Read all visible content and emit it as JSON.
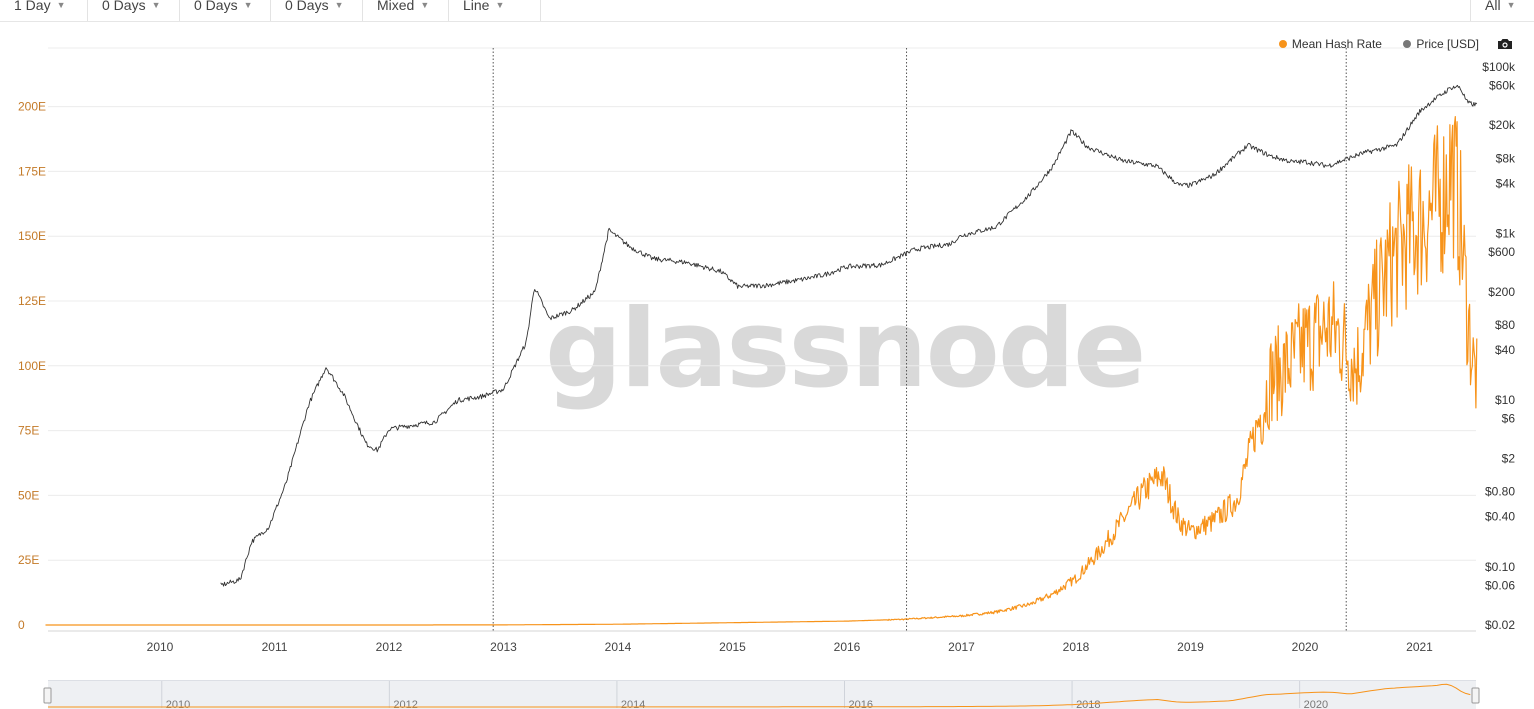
{
  "toolbar": {
    "resolution": "1 Day",
    "ma1": "0 Days",
    "ma2": "0 Days",
    "ma3": "0 Days",
    "scale": "Mixed",
    "chart_style": "Line",
    "range": "All"
  },
  "legend": {
    "hash_rate": "Mean Hash Rate",
    "price": "Price [USD]"
  },
  "watermark": "glassnode",
  "navigator_years": [
    "2010",
    "2012",
    "2014",
    "2016",
    "2018",
    "2020"
  ],
  "colors": {
    "hash_rate": "#f7931a",
    "price": "#333333",
    "left_axis_labels": "#c47a28",
    "grid": "#ececec"
  },
  "icons": {
    "camera": "camera-icon",
    "dropdown": "chevron-down-icon"
  },
  "chart_data": {
    "type": "line",
    "x_ticks": [
      "2010",
      "2011",
      "2012",
      "2013",
      "2014",
      "2015",
      "2016",
      "2017",
      "2018",
      "2019",
      "2020",
      "2021"
    ],
    "left_axis": {
      "ticks": [
        "0",
        "25E",
        "50E",
        "75E",
        "100E",
        "125E",
        "150E",
        "175E",
        "200E"
      ],
      "values": [
        0,
        25,
        50,
        75,
        100,
        125,
        150,
        175,
        200
      ],
      "unit": "EH/s",
      "ylim": [
        0,
        225
      ]
    },
    "right_axis": {
      "scale": "log",
      "ticks": [
        "$100k",
        "$60k",
        "$20k",
        "$8k",
        "$4k",
        "$1k",
        "$600",
        "$200",
        "$80",
        "$40",
        "$10",
        "$6",
        "$2",
        "$0.80",
        "$0.40",
        "$0.10",
        "$0.06",
        "$0.02"
      ],
      "values": [
        100000,
        60000,
        20000,
        8000,
        4000,
        1000,
        600,
        200,
        80,
        40,
        10,
        6,
        2,
        0.8,
        0.4,
        0.1,
        0.06,
        0.02
      ],
      "ylim": [
        0.02,
        100000
      ]
    },
    "halving_dates": [
      2012.91,
      2016.52,
      2020.36
    ],
    "series": [
      {
        "name": "Mean Hash Rate",
        "axis": "left",
        "x": [
          2009.0,
          2010.0,
          2011.0,
          2012.0,
          2013.0,
          2014.0,
          2014.5,
          2015.0,
          2015.5,
          2016.0,
          2016.5,
          2017.0,
          2017.3,
          2017.6,
          2017.8,
          2018.0,
          2018.2,
          2018.4,
          2018.6,
          2018.75,
          2018.9,
          2019.0,
          2019.2,
          2019.4,
          2019.55,
          2019.7,
          2019.85,
          2020.0,
          2020.2,
          2020.3,
          2020.45,
          2020.6,
          2020.75,
          2020.9,
          2021.0,
          2021.1,
          2021.2,
          2021.28,
          2021.35,
          2021.42,
          2021.47,
          2021.5
        ],
        "y": [
          0,
          0,
          0,
          0,
          0.05,
          0.3,
          0.6,
          0.9,
          1.2,
          1.5,
          2.2,
          3.5,
          5,
          8,
          12,
          18,
          28,
          40,
          52,
          58,
          40,
          36,
          40,
          48,
          72,
          95,
          100,
          108,
          115,
          112,
          100,
          122,
          140,
          150,
          155,
          160,
          165,
          178,
          160,
          120,
          100,
          95
        ]
      },
      {
        "name": "Price [USD]",
        "axis": "right",
        "x": [
          2010.53,
          2010.7,
          2010.8,
          2010.95,
          2011.1,
          2011.2,
          2011.3,
          2011.45,
          2011.6,
          2011.7,
          2011.8,
          2011.9,
          2012.0,
          2012.2,
          2012.4,
          2012.6,
          2012.8,
          2013.0,
          2013.2,
          2013.27,
          2013.4,
          2013.6,
          2013.8,
          2013.92,
          2014.1,
          2014.3,
          2014.6,
          2014.9,
          2015.05,
          2015.3,
          2015.6,
          2015.8,
          2016.0,
          2016.3,
          2016.6,
          2016.9,
          2017.0,
          2017.3,
          2017.6,
          2017.8,
          2017.96,
          2018.1,
          2018.4,
          2018.7,
          2018.9,
          2019.0,
          2019.2,
          2019.5,
          2019.7,
          2019.9,
          2020.0,
          2020.2,
          2020.5,
          2020.8,
          2021.0,
          2021.1,
          2021.28,
          2021.35,
          2021.42,
          2021.5
        ],
        "y": [
          0.06,
          0.07,
          0.2,
          0.3,
          1,
          3,
          9,
          25,
          12,
          6,
          3,
          2.5,
          4.5,
          5,
          5.5,
          10,
          11,
          13.5,
          50,
          230,
          95,
          120,
          200,
          1100,
          700,
          500,
          450,
          350,
          230,
          240,
          280,
          320,
          400,
          420,
          650,
          750,
          950,
          1200,
          3000,
          6500,
          17000,
          11000,
          7500,
          6500,
          3800,
          3800,
          5000,
          11500,
          8500,
          7200,
          7300,
          6500,
          9200,
          11500,
          29000,
          38000,
          57000,
          58000,
          37000,
          35000
        ]
      }
    ]
  }
}
